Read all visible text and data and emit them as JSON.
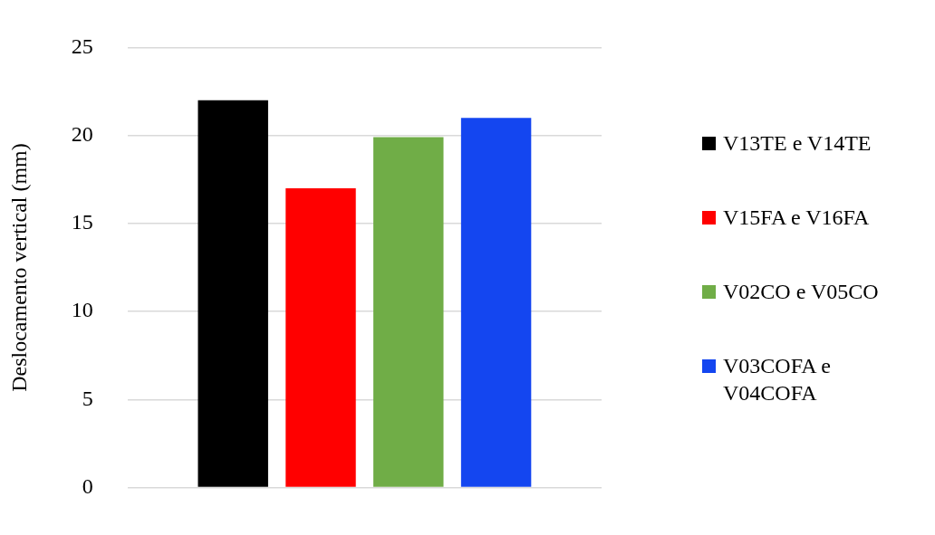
{
  "chart_data": {
    "type": "bar",
    "ylabel": "Deslocamento vertical (mm)",
    "categories": [
      null
    ],
    "series": [
      {
        "name": "V13TE e V14TE",
        "color": "#000000",
        "values": [
          22.0
        ]
      },
      {
        "name": "V15FA e V16FA",
        "color": "#ff0000",
        "values": [
          17.0
        ]
      },
      {
        "name": "V02CO e V05CO",
        "color": "#70ad47",
        "values": [
          19.9
        ]
      },
      {
        "name": "V03COFA e V04COFA",
        "color": "#1446f0",
        "values": [
          21.0
        ]
      }
    ],
    "ylim": [
      0,
      25
    ],
    "yticks": [
      0,
      5,
      10,
      15,
      20,
      25
    ],
    "grid": "y",
    "legend": "right"
  }
}
